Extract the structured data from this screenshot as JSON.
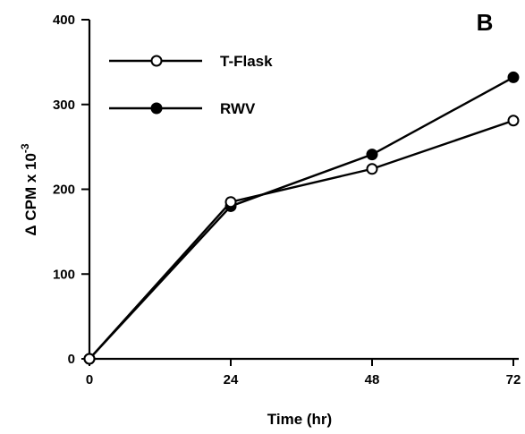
{
  "chart_data": {
    "type": "line",
    "panel_label": "B",
    "xlabel": "Time (hr)",
    "ylabel": "Δ CPM x 10",
    "ylabel_exponent": "-3",
    "x_ticks": [
      "0",
      "24",
      "48",
      "72"
    ],
    "y_ticks": [
      "0",
      "100",
      "200",
      "300",
      "400"
    ],
    "xlim": [
      0,
      72
    ],
    "ylim": [
      0,
      400
    ],
    "grid": false,
    "legend_position": "top-left",
    "series": [
      {
        "name": "T-Flask",
        "marker": "open-circle",
        "x": [
          0,
          24,
          48,
          72
        ],
        "y": [
          0,
          185,
          224,
          281
        ]
      },
      {
        "name": "RWV",
        "marker": "filled-circle",
        "x": [
          0,
          24,
          48,
          72
        ],
        "y": [
          0,
          180,
          241,
          332
        ]
      }
    ]
  }
}
